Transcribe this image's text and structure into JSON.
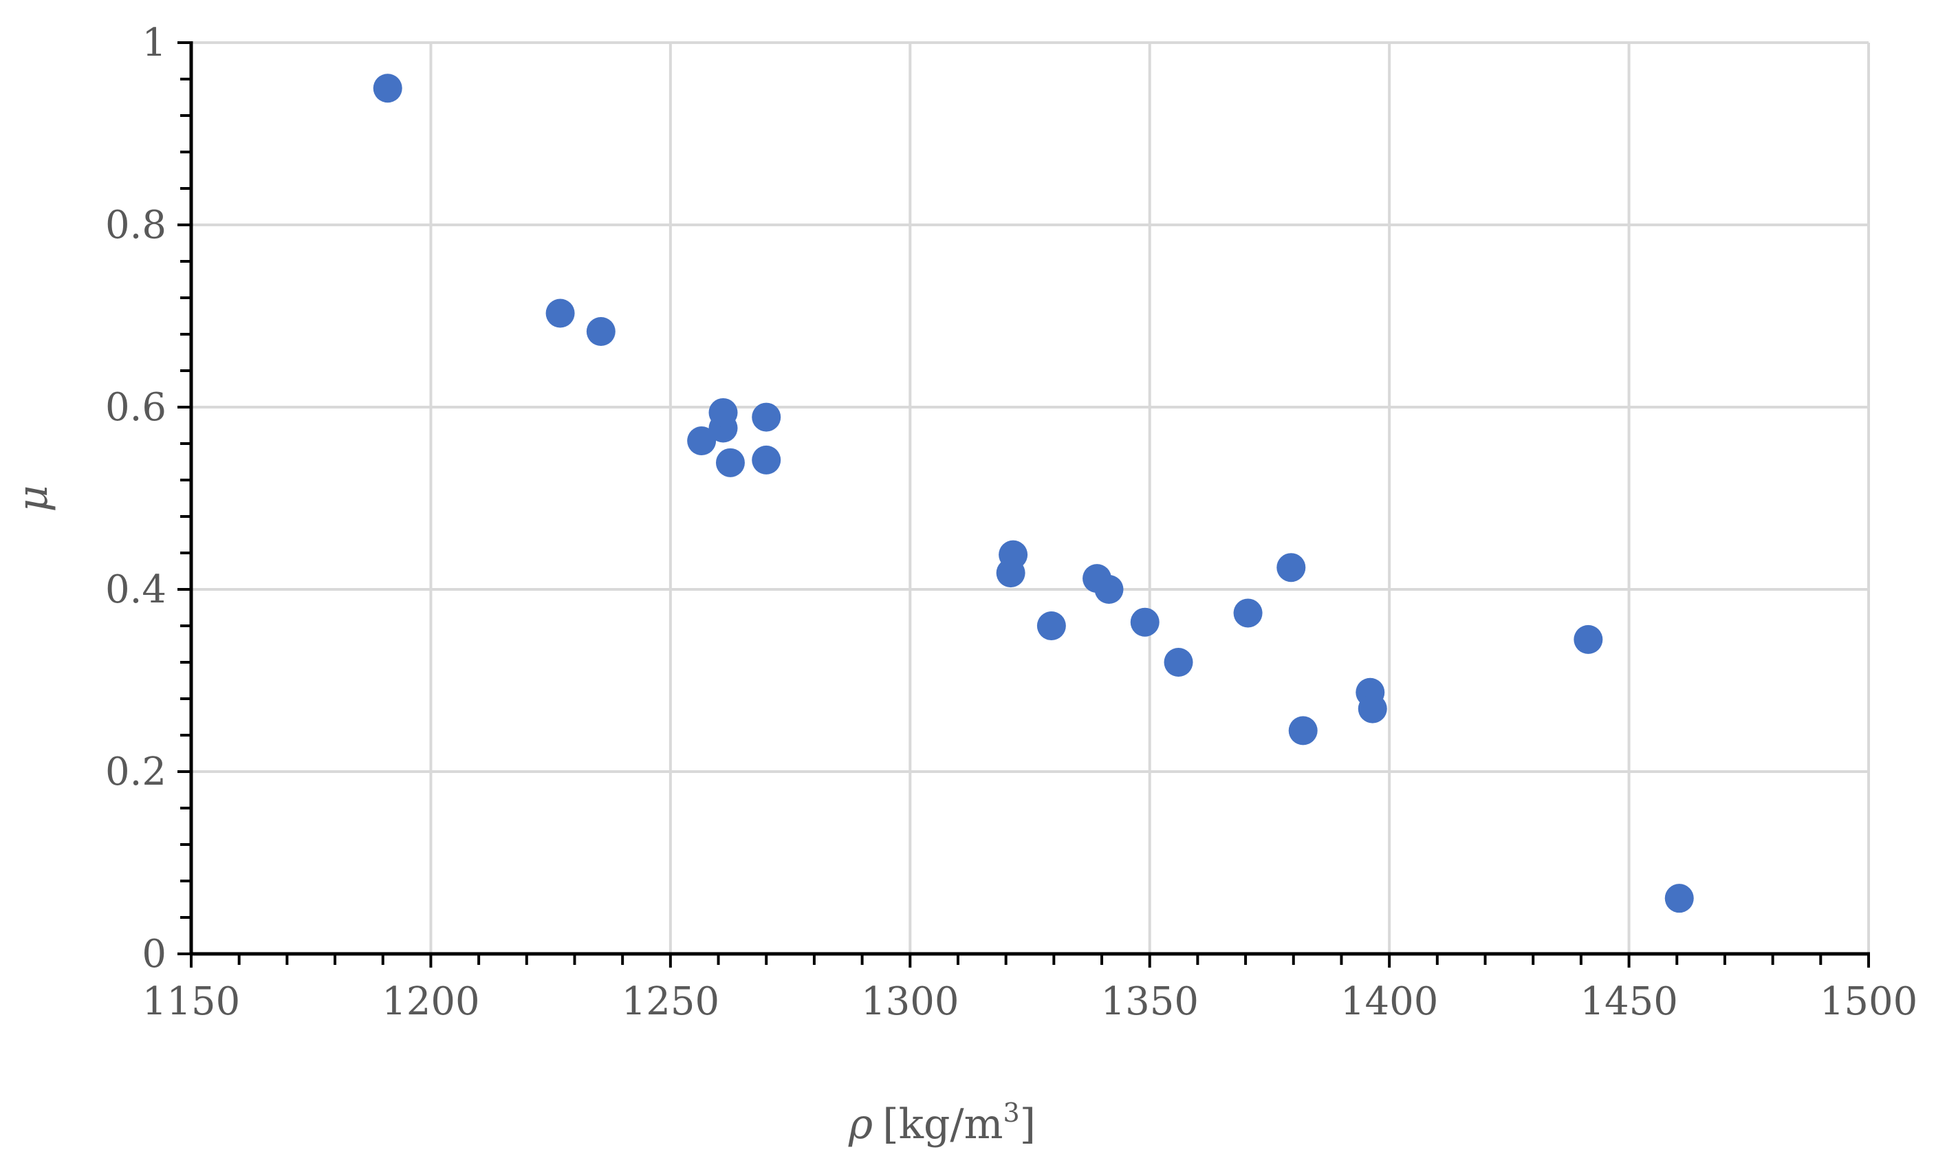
{
  "chart_data": {
    "type": "scatter",
    "title": "",
    "xlabel_symbol": "ρ",
    "xlabel_unit": "[kg/m",
    "xlabel_sup": "3",
    "xlabel_close": "]",
    "ylabel": "μ",
    "xlim": [
      1150,
      1500
    ],
    "ylim": [
      0,
      1
    ],
    "xticks": [
      "1150",
      "1200",
      "1250",
      "1300",
      "1350",
      "1400",
      "1450",
      "1500"
    ],
    "yticks": [
      "0",
      "0.2",
      "0.4",
      "0.6",
      "0.8",
      "1"
    ],
    "grid": true,
    "legend": "none",
    "marker_color": "#4472C4",
    "series": [
      {
        "points": [
          {
            "x": 1191,
            "y": 0.95
          },
          {
            "x": 1227,
            "y": 0.703
          },
          {
            "x": 1235.5,
            "y": 0.683
          },
          {
            "x": 1256.5,
            "y": 0.563
          },
          {
            "x": 1261,
            "y": 0.577
          },
          {
            "x": 1261,
            "y": 0.594
          },
          {
            "x": 1262.5,
            "y": 0.539
          },
          {
            "x": 1270,
            "y": 0.589
          },
          {
            "x": 1270,
            "y": 0.542
          },
          {
            "x": 1321.5,
            "y": 0.438
          },
          {
            "x": 1321,
            "y": 0.418
          },
          {
            "x": 1329.5,
            "y": 0.36
          },
          {
            "x": 1339,
            "y": 0.412
          },
          {
            "x": 1341.5,
            "y": 0.4
          },
          {
            "x": 1349,
            "y": 0.364
          },
          {
            "x": 1356,
            "y": 0.32
          },
          {
            "x": 1370.5,
            "y": 0.374
          },
          {
            "x": 1379.5,
            "y": 0.424
          },
          {
            "x": 1382,
            "y": 0.245
          },
          {
            "x": 1396,
            "y": 0.287
          },
          {
            "x": 1396.5,
            "y": 0.269
          },
          {
            "x": 1441.5,
            "y": 0.345
          },
          {
            "x": 1460.5,
            "y": 0.061
          }
        ]
      }
    ]
  }
}
